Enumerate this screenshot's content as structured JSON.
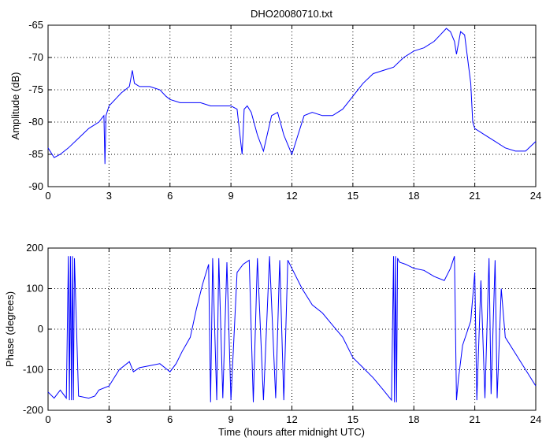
{
  "figure": {
    "title": "DHO20080710.txt",
    "x_label": "Time (hours after midnight UTC)"
  },
  "colors": {
    "series": "#0000ff",
    "axes": "#000000",
    "grid": "#000000",
    "background": "#ffffff"
  },
  "chart_data": [
    {
      "type": "line",
      "title": "DHO20080710.txt",
      "xlabel": "",
      "ylabel": "Amplitude (dB)",
      "xlim": [
        0,
        24
      ],
      "ylim": [
        -90,
        -65
      ],
      "xticks": [
        0,
        3,
        6,
        9,
        12,
        15,
        18,
        21,
        24
      ],
      "yticks": [
        -90,
        -85,
        -80,
        -75,
        -70,
        -65
      ],
      "grid": true,
      "series": [
        {
          "x": [
            0,
            0.3,
            0.6,
            1.0,
            1.5,
            2.0,
            2.5,
            2.75,
            2.8,
            2.85,
            3.0,
            3.3,
            3.6,
            4.0,
            4.15,
            4.25,
            4.5,
            5.0,
            5.5,
            5.8,
            6.0,
            6.5,
            7.0,
            7.5,
            8.0,
            8.5,
            9.0,
            9.3,
            9.55,
            9.65,
            9.8,
            10.0,
            10.3,
            10.6,
            11.0,
            11.3,
            11.6,
            11.8,
            12.0,
            12.3,
            12.6,
            13.0,
            13.5,
            14.0,
            14.5,
            15.0,
            15.5,
            16.0,
            16.5,
            17.0,
            17.5,
            18.0,
            18.5,
            19.0,
            19.3,
            19.6,
            19.8,
            20.0,
            20.1,
            20.3,
            20.5,
            20.8,
            20.9,
            21.0,
            21.5,
            22.0,
            22.5,
            23.0,
            23.5,
            24.0
          ],
          "y": [
            -84,
            -85.5,
            -85,
            -84,
            -82.5,
            -81,
            -80,
            -79,
            -86.5,
            -79,
            -77.5,
            -76.5,
            -75.5,
            -74.5,
            -72,
            -74,
            -74.5,
            -74.5,
            -75,
            -76,
            -76.5,
            -77,
            -77,
            -77,
            -77.5,
            -77.5,
            -77.5,
            -78,
            -85,
            -78,
            -77.5,
            -78.5,
            -82,
            -84.5,
            -79,
            -78.5,
            -82,
            -83.5,
            -85,
            -82,
            -79,
            -78.5,
            -79,
            -79,
            -78,
            -76,
            -74,
            -72.5,
            -72,
            -71.5,
            -70,
            -69,
            -68.5,
            -67.5,
            -66.5,
            -65.5,
            -66,
            -67.5,
            -69.5,
            -66,
            -66.5,
            -74,
            -80,
            -81,
            -82,
            -83,
            -84,
            -84.5,
            -84.5,
            -83
          ]
        }
      ]
    },
    {
      "type": "line",
      "title": "",
      "xlabel": "Time (hours after midnight UTC)",
      "ylabel": "Phase (degrees)",
      "xlim": [
        0,
        24
      ],
      "ylim": [
        -200,
        200
      ],
      "xticks": [
        0,
        3,
        6,
        9,
        12,
        15,
        18,
        21,
        24
      ],
      "yticks": [
        -200,
        -100,
        0,
        100,
        200
      ],
      "grid": true,
      "series": [
        {
          "x": [
            0,
            0.3,
            0.6,
            0.9,
            1.0,
            1.05,
            1.1,
            1.15,
            1.2,
            1.25,
            1.3,
            1.5,
            2.0,
            2.3,
            2.5,
            3.0,
            3.5,
            4.0,
            4.2,
            4.5,
            5.0,
            5.5,
            6.0,
            6.3,
            6.6,
            7.0,
            7.3,
            7.6,
            7.9,
            8.0,
            8.1,
            8.3,
            8.4,
            8.6,
            8.8,
            9.0,
            9.3,
            9.6,
            9.9,
            10.1,
            10.3,
            10.6,
            10.9,
            11.2,
            11.4,
            11.6,
            11.8,
            12.0,
            12.5,
            13.0,
            13.5,
            14.0,
            14.5,
            15.0,
            15.5,
            16.0,
            16.5,
            16.9,
            17.0,
            17.05,
            17.1,
            17.15,
            17.2,
            17.3,
            17.6,
            18.0,
            18.5,
            19.0,
            19.5,
            19.8,
            20.0,
            20.1,
            20.2,
            20.3,
            20.4,
            20.6,
            20.8,
            21.0,
            21.1,
            21.3,
            21.5,
            21.7,
            21.8,
            22.0,
            22.1,
            22.3,
            22.5,
            23.0,
            23.5,
            24.0
          ],
          "y": [
            -155,
            -170,
            -150,
            -170,
            180,
            -175,
            180,
            -175,
            180,
            -175,
            175,
            -165,
            -170,
            -165,
            -150,
            -140,
            -100,
            -80,
            -105,
            -95,
            -90,
            -85,
            -105,
            -85,
            -55,
            -20,
            50,
            110,
            160,
            -180,
            175,
            -175,
            175,
            -170,
            165,
            -175,
            140,
            160,
            170,
            -180,
            175,
            -175,
            180,
            -170,
            170,
            -175,
            170,
            150,
            100,
            60,
            40,
            10,
            -20,
            -70,
            -95,
            -120,
            -150,
            -175,
            180,
            -180,
            180,
            -180,
            175,
            165,
            160,
            150,
            145,
            130,
            120,
            150,
            180,
            -175,
            -120,
            -80,
            -40,
            -10,
            20,
            140,
            -175,
            120,
            -170,
            175,
            -160,
            170,
            -170,
            100,
            -20,
            -60,
            -100,
            -140
          ]
        }
      ]
    }
  ]
}
